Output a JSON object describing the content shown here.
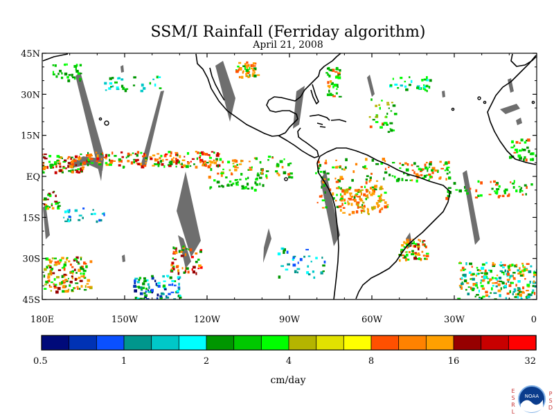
{
  "figure": {
    "title": "SSM/I Rainfall (Ferriday algorithm)",
    "subtitle": "April 21, 2008",
    "units_label": "cm/day"
  },
  "map": {
    "lon_range": [
      -180,
      0
    ],
    "lat_range": [
      -45,
      45
    ],
    "lat_ticks": [
      {
        "value": 45,
        "label": "45N"
      },
      {
        "value": 30,
        "label": "30N"
      },
      {
        "value": 15,
        "label": "15N"
      },
      {
        "value": 0,
        "label": "EQ"
      },
      {
        "value": -15,
        "label": "15S"
      },
      {
        "value": -30,
        "label": "30S"
      },
      {
        "value": -45,
        "label": "45S"
      }
    ],
    "lon_ticks": [
      {
        "value": -180,
        "label": "180E"
      },
      {
        "value": -150,
        "label": "150W"
      },
      {
        "value": -120,
        "label": "120W"
      },
      {
        "value": -90,
        "label": "90W"
      },
      {
        "value": -60,
        "label": "60W"
      },
      {
        "value": -30,
        "label": "30W"
      },
      {
        "value": 0,
        "label": "0"
      }
    ],
    "no_data_color": "#6e6e6e",
    "coastline_color": "#000000"
  },
  "colorbar": {
    "colors": [
      "#000a7a",
      "#0032b4",
      "#0a50ff",
      "#00968c",
      "#00c8c8",
      "#00ffff",
      "#009600",
      "#00c800",
      "#00ff00",
      "#b4b400",
      "#e1e100",
      "#ffff00",
      "#ff5000",
      "#ff8200",
      "#ffa000",
      "#960000",
      "#c80000",
      "#ff0000"
    ],
    "tick_labels": [
      "0.5",
      "1",
      "2",
      "4",
      "8",
      "16",
      "32"
    ]
  },
  "logo": {
    "left_letters": [
      "E",
      "S",
      "R",
      "L"
    ],
    "right_letters": [
      "P",
      "S",
      "D"
    ],
    "emblem_text": "NOAA"
  }
}
